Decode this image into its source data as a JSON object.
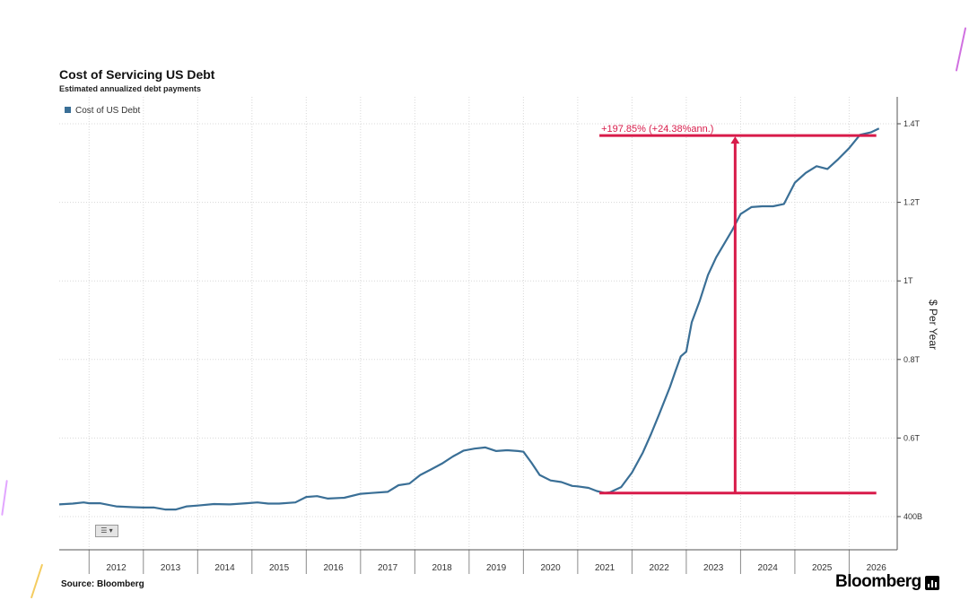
{
  "chart_data": {
    "type": "line",
    "title": "Cost of Servicing US Debt",
    "subtitle": "Estimated annualized debt payments",
    "ylabel": "$ Per Year",
    "ylim": [
      0.3,
      1.45
    ],
    "y_ticks": [
      {
        "value": 0.4,
        "label": "400B"
      },
      {
        "value": 0.6,
        "label": "0.6T"
      },
      {
        "value": 0.8,
        "label": "0.8T"
      },
      {
        "value": 1.0,
        "label": "1T"
      },
      {
        "value": 1.2,
        "label": "1.2T"
      },
      {
        "value": 1.4,
        "label": "1.4T"
      }
    ],
    "x_range": [
      2011.45,
      2026.72
    ],
    "x_ticks": [
      "2012",
      "2013",
      "2014",
      "2015",
      "2016",
      "2017",
      "2018",
      "2019",
      "2020",
      "2021",
      "2022",
      "2023",
      "2024",
      "2025",
      "2026"
    ],
    "legend": [
      "Cost of US Debt"
    ],
    "grid": true,
    "series": [
      {
        "name": "Cost of US Debt",
        "color": "#3a6f96",
        "x": [
          2011.45,
          2011.7,
          2011.9,
          2012.0,
          2012.2,
          2012.5,
          2012.8,
          2013.0,
          2013.2,
          2013.4,
          2013.6,
          2013.8,
          2014.0,
          2014.3,
          2014.6,
          2014.9,
          2015.1,
          2015.3,
          2015.5,
          2015.8,
          2016.0,
          2016.2,
          2016.4,
          2016.7,
          2017.0,
          2017.2,
          2017.5,
          2017.7,
          2017.9,
          2018.1,
          2018.3,
          2018.5,
          2018.7,
          2018.9,
          2019.1,
          2019.3,
          2019.5,
          2019.7,
          2019.9,
          2020.0,
          2020.15,
          2020.3,
          2020.5,
          2020.7,
          2020.9,
          2021.0,
          2021.2,
          2021.35,
          2021.5,
          2021.6,
          2021.8,
          2022.0,
          2022.2,
          2022.35,
          2022.5,
          2022.7,
          2022.8,
          2022.9,
          2023.0,
          2023.1,
          2023.25,
          2023.4,
          2023.55,
          2023.7,
          2023.85,
          2024.0,
          2024.2,
          2024.4,
          2024.6,
          2024.8,
          2025.0,
          2025.2,
          2025.4,
          2025.6,
          2025.8,
          2026.0,
          2026.2,
          2026.4,
          2026.55
        ],
        "values": [
          0.431,
          0.433,
          0.436,
          0.434,
          0.434,
          0.426,
          0.424,
          0.423,
          0.423,
          0.418,
          0.418,
          0.426,
          0.428,
          0.432,
          0.431,
          0.434,
          0.436,
          0.433,
          0.433,
          0.436,
          0.45,
          0.452,
          0.446,
          0.448,
          0.458,
          0.46,
          0.463,
          0.48,
          0.484,
          0.506,
          0.52,
          0.535,
          0.553,
          0.568,
          0.573,
          0.576,
          0.567,
          0.569,
          0.567,
          0.565,
          0.537,
          0.506,
          0.492,
          0.488,
          0.478,
          0.477,
          0.473,
          0.465,
          0.46,
          0.462,
          0.475,
          0.512,
          0.563,
          0.61,
          0.66,
          0.73,
          0.77,
          0.808,
          0.82,
          0.895,
          0.95,
          1.015,
          1.06,
          1.095,
          1.13,
          1.17,
          1.188,
          1.19,
          1.19,
          1.196,
          1.25,
          1.275,
          1.292,
          1.285,
          1.31,
          1.338,
          1.372,
          1.378,
          1.388
        ]
      }
    ],
    "annotation": {
      "text": "+197.85% (+24.38%ann.)",
      "color": "#d81b4a",
      "baseline_value": 0.46,
      "end_value": 1.37,
      "x_start": 2021.4,
      "x_end": 2026.5,
      "arrow_x": 2023.9
    }
  },
  "source": "Source: Bloomberg",
  "brand": "Bloomberg",
  "menu_button_label": "☰ ▾"
}
